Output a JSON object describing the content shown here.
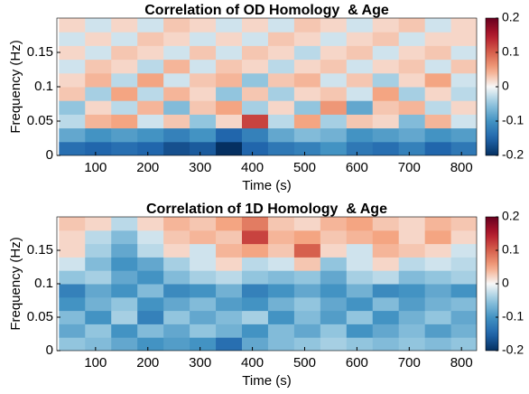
{
  "chart_data": [
    {
      "type": "heatmap",
      "title": "Correlation of OD Homology  & Age",
      "xlabel": "Time (s)",
      "ylabel": "Frequency (Hz)",
      "colormap": "RdBu",
      "x": [
        55,
        105,
        155,
        205,
        255,
        305,
        355,
        405,
        455,
        505,
        555,
        605,
        655,
        705,
        755,
        805
      ],
      "y": [
        0.01,
        0.03,
        0.05,
        0.07,
        0.09,
        0.11,
        0.13,
        0.15,
        0.17,
        0.19
      ],
      "z": [
        [
          -0.14,
          -0.15,
          -0.14,
          -0.15,
          -0.17,
          -0.16,
          -0.2,
          -0.15,
          -0.13,
          -0.12,
          -0.1,
          -0.13,
          -0.14,
          -0.12,
          -0.15,
          -0.13
        ],
        [
          -0.08,
          -0.1,
          -0.09,
          -0.1,
          -0.12,
          -0.1,
          -0.15,
          -0.12,
          -0.08,
          -0.06,
          -0.07,
          -0.1,
          -0.09,
          -0.08,
          -0.1,
          -0.09
        ],
        [
          -0.03,
          0.04,
          0.05,
          -0.02,
          0.03,
          -0.05,
          0.02,
          0.12,
          -0.03,
          0.05,
          -0.04,
          0.03,
          0.02,
          -0.06,
          0.04,
          -0.02
        ],
        [
          -0.05,
          0.02,
          -0.03,
          0.04,
          -0.06,
          0.03,
          0.05,
          -0.04,
          0.02,
          -0.05,
          0.06,
          -0.08,
          0.03,
          0.04,
          -0.03,
          0.02
        ],
        [
          0.03,
          -0.04,
          0.05,
          -0.03,
          0.04,
          0.02,
          -0.05,
          0.03,
          -0.04,
          0.02,
          0.03,
          -0.02,
          0.05,
          -0.04,
          0.02,
          -0.03
        ],
        [
          0.02,
          0.04,
          -0.03,
          0.05,
          -0.02,
          0.03,
          0.04,
          -0.05,
          0.03,
          0.04,
          -0.02,
          0.03,
          -0.04,
          0.02,
          0.05,
          -0.02
        ],
        [
          -0.02,
          0.03,
          0.02,
          -0.03,
          0.04,
          -0.02,
          0.03,
          0.02,
          -0.03,
          0.02,
          0.03,
          -0.02,
          0.02,
          0.03,
          -0.02,
          0.03
        ],
        [
          0.02,
          -0.02,
          0.03,
          0.02,
          -0.02,
          0.03,
          -0.02,
          0.03,
          0.02,
          -0.03,
          0.02,
          0.03,
          -0.02,
          0.02,
          0.03,
          -0.02
        ],
        [
          -0.02,
          0.02,
          -0.02,
          0.03,
          0.02,
          -0.02,
          0.02,
          -0.02,
          0.03,
          0.02,
          -0.02,
          0.02,
          0.03,
          -0.02,
          0.02,
          0.02
        ],
        [
          0.02,
          -0.02,
          0.02,
          -0.02,
          0.03,
          0.02,
          -0.02,
          0.02,
          -0.02,
          0.03,
          0.02,
          -0.02,
          0.02,
          0.03,
          -0.02,
          0.02
        ]
      ],
      "xlim": [
        26,
        829
      ],
      "ylim": [
        0,
        0.2
      ],
      "xticks": [
        100,
        200,
        300,
        400,
        500,
        600,
        700,
        800
      ],
      "yticks": [
        0,
        0.05,
        0.1,
        0.15
      ],
      "clim": [
        -0.2,
        0.2
      ],
      "cticks": [
        -0.2,
        -0.1,
        0,
        0.1,
        0.2
      ]
    },
    {
      "type": "heatmap",
      "title": "Correlation of 1D Homology  & Age",
      "xlabel": "Time (s)",
      "ylabel": "Frequency (Hz)",
      "colormap": "RdBu",
      "x": [
        55,
        105,
        155,
        205,
        255,
        305,
        355,
        405,
        455,
        505,
        555,
        605,
        655,
        705,
        755,
        805
      ],
      "y": [
        0.01,
        0.03,
        0.05,
        0.07,
        0.09,
        0.11,
        0.13,
        0.15,
        0.17,
        0.19
      ],
      "z": [
        [
          -0.05,
          -0.06,
          -0.08,
          -0.1,
          -0.09,
          -0.1,
          -0.14,
          -0.08,
          -0.06,
          -0.05,
          -0.04,
          -0.05,
          -0.06,
          -0.05,
          -0.06,
          -0.05
        ],
        [
          -0.08,
          -0.05,
          -0.1,
          -0.06,
          -0.08,
          -0.05,
          -0.07,
          -0.1,
          -0.06,
          -0.08,
          -0.05,
          -0.1,
          -0.08,
          -0.06,
          -0.09,
          -0.07
        ],
        [
          -0.06,
          -0.1,
          -0.04,
          -0.12,
          -0.05,
          -0.08,
          -0.06,
          -0.04,
          -0.1,
          -0.06,
          -0.09,
          -0.05,
          -0.1,
          -0.07,
          -0.05,
          -0.08
        ],
        [
          -0.1,
          -0.07,
          -0.05,
          -0.1,
          -0.08,
          -0.06,
          -0.09,
          -0.1,
          -0.07,
          -0.05,
          -0.08,
          -0.1,
          -0.06,
          -0.09,
          -0.07,
          -0.06
        ],
        [
          -0.12,
          -0.08,
          -0.1,
          -0.06,
          -0.11,
          -0.1,
          -0.07,
          -0.12,
          -0.1,
          -0.08,
          -0.1,
          -0.07,
          -0.11,
          -0.1,
          -0.08,
          -0.1
        ],
        [
          -0.05,
          -0.04,
          -0.08,
          -0.1,
          -0.06,
          -0.04,
          -0.03,
          -0.05,
          -0.06,
          -0.05,
          -0.08,
          -0.04,
          -0.03,
          -0.06,
          -0.05,
          -0.04
        ],
        [
          -0.02,
          -0.06,
          -0.1,
          -0.08,
          -0.04,
          -0.02,
          0.02,
          -0.03,
          -0.02,
          0.03,
          -0.05,
          -0.02,
          0.02,
          -0.03,
          -0.02,
          -0.03
        ],
        [
          0.02,
          -0.04,
          -0.08,
          -0.03,
          0.02,
          -0.02,
          0.04,
          0.05,
          0.03,
          0.1,
          0.02,
          -0.02,
          0.04,
          0.03,
          0.02,
          -0.02
        ],
        [
          0.02,
          -0.03,
          -0.06,
          -0.02,
          0.03,
          0.04,
          0.03,
          0.12,
          0.04,
          0.05,
          0.03,
          0.04,
          0.05,
          0.02,
          0.05,
          0.02
        ],
        [
          0.03,
          0.02,
          -0.03,
          0.02,
          0.04,
          0.03,
          0.05,
          0.08,
          0.03,
          0.02,
          0.04,
          0.05,
          0.03,
          0.02,
          0.04,
          0.03
        ]
      ],
      "xlim": [
        26,
        829
      ],
      "ylim": [
        0,
        0.2
      ],
      "xticks": [
        100,
        200,
        300,
        400,
        500,
        600,
        700,
        800
      ],
      "yticks": [
        0,
        0.05,
        0.1,
        0.15
      ],
      "clim": [
        -0.2,
        0.2
      ],
      "cticks": [
        -0.2,
        -0.1,
        0,
        0.1,
        0.2
      ]
    }
  ]
}
